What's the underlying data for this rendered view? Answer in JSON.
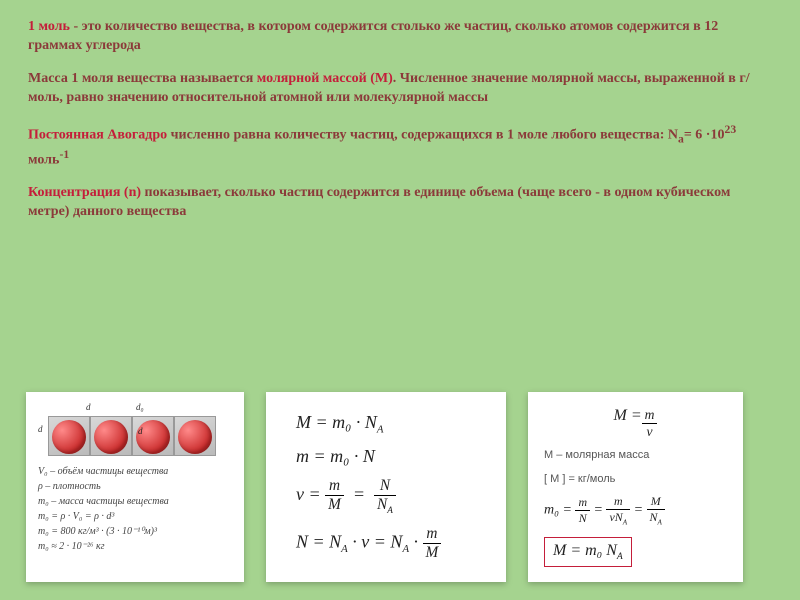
{
  "paragraphs": {
    "p1a": "1 моль",
    "p1b": " - это количество вещества, в котором содержится столько же частиц, сколько атомов содержится в 12 граммах углерода",
    "p2a": "Масса 1 моля вещества называется ",
    "p2b": "молярной массой (M)",
    "p2c": ". Численное значение молярной массы, выраженной в г/моль, равно значению относительной атомной или молекулярной массы",
    "p3a": "Постоянная Авогадро",
    "p3b": " численно равна количеству частиц, содержащихся в 1 моле любого вещества: N",
    "p3c": "= 6 ·10",
    "p3d": " моль",
    "p4a": "Концентрация (n)",
    "p4b": " показывает, сколько частиц содержится в единице объема (чаще всего - в одном кубическом метре) данного вещества"
  },
  "card1": {
    "d_top": "d",
    "d0_top": "d₀",
    "d_left": "d",
    "d_in": "d",
    "l1": "V₀ – объём частицы вещества",
    "l2": "ρ – плотность",
    "l3": "m₀ – масса частицы вещества",
    "l4": "m₀ = ρ · V₀ = ρ · d³",
    "l5": "m₀ = 800 кг/м³ · (3 · 10⁻¹⁰м)³",
    "l6": "m₀ ≈ 2 · 10⁻²⁶ кг"
  },
  "card2": {
    "f1_l": "M = m₀ · N",
    "f1_r": "A",
    "f2": "m = m₀ · N",
    "f3_nu": "ν = ",
    "f3_n1": "m",
    "f3_d1": "M",
    "f3_n2": "N",
    "f3_d2": "N",
    "f4_l": "N = N",
    "f4_r": " · ν  = N",
    "f4_n": "m",
    "f4_d": "M"
  },
  "card3": {
    "f1_n": "m",
    "f1_d": "ν",
    "f1_lhs": "M = ",
    "note1": "M – молярная масса",
    "note2": "[ M ] = кг/моль",
    "f2_lhs": "m₀ = ",
    "f2_n1": "m",
    "f2_d1": "N",
    "f2_n2": "m",
    "f2_d2": "νN",
    "f2_n3": "M",
    "f2_d3": "N",
    "boxed": "M = m₀ N",
    "boxed_sub": "A"
  },
  "colors": {
    "bg": "#a5d38f",
    "text_main": "#8b3a3a",
    "term": "#c41e3a",
    "card_bg": "#ffffff"
  }
}
